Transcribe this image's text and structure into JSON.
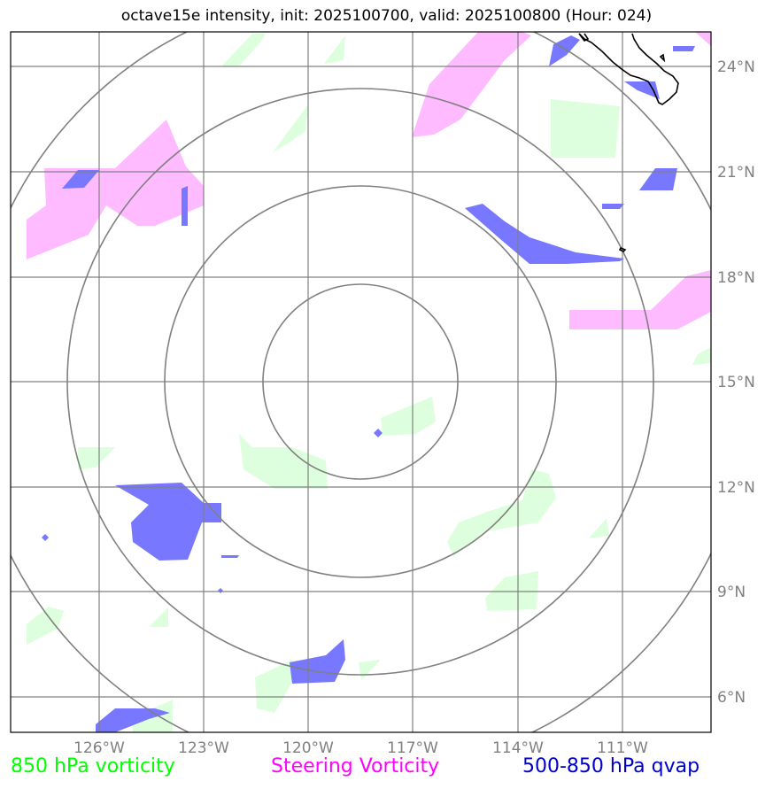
{
  "title": "octave15e intensity, init: 2025100700, valid: 2025100800 (Hour: 024)",
  "lon_ticks": [
    "126°W",
    "123°W",
    "120°W",
    "117°W",
    "114°W",
    "111°W"
  ],
  "lat_ticks": [
    "24°N",
    "21°N",
    "18°N",
    "15°N",
    "12°N",
    "9°N",
    "6°N"
  ],
  "legend": {
    "vort850": {
      "label": "850 hPa vorticity",
      "color": "#00ff00"
    },
    "steering": {
      "label": "Steering Vorticity",
      "color": "#ff00ff"
    },
    "qvap": {
      "label": "500-850 hPa qvap",
      "color": "#0000cc"
    }
  },
  "colors": {
    "green_fill": "#ddffdd",
    "magenta_fill": "#ffbbff",
    "blue_fill": "#7777ff",
    "grid": "#808080",
    "coast": "#000000"
  }
}
